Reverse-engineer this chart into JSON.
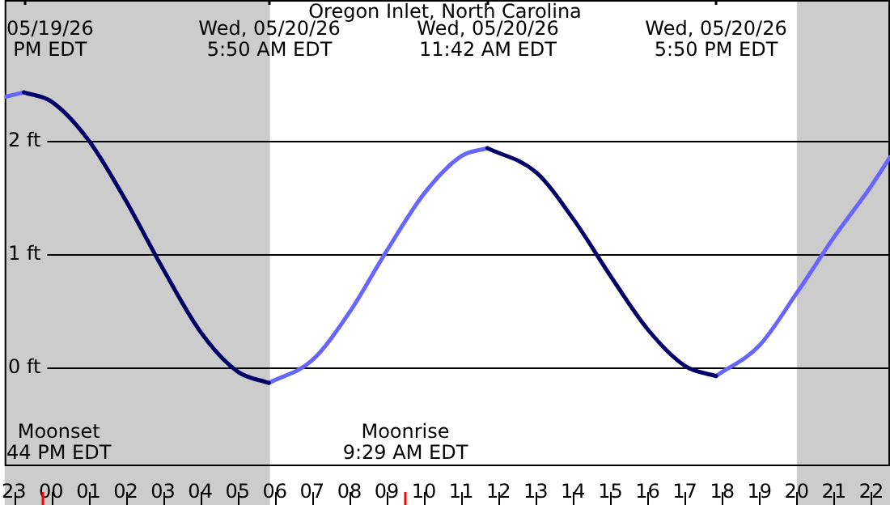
{
  "chart_data": {
    "type": "line",
    "title": "Oregon Inlet, North Carolina",
    "xlim": [
      "--05-19T22:45",
      "--05-20T22:30"
    ],
    "xticks": [
      {
        "value": "--05-19T23:00",
        "label": "23"
      },
      {
        "value": "--05-20T00:00",
        "label": "00"
      },
      {
        "value": "--05-20T01:00",
        "label": "01"
      },
      {
        "value": "--05-20T02:00",
        "label": "02"
      },
      {
        "value": "--05-20T03:00",
        "label": "03"
      },
      {
        "value": "--05-20T04:00",
        "label": "04"
      },
      {
        "value": "--05-20T05:00",
        "label": "05"
      },
      {
        "value": "--05-20T06:00",
        "label": "06"
      },
      {
        "value": "--05-20T07:00",
        "label": "07"
      },
      {
        "value": "--05-20T08:00",
        "label": "08"
      },
      {
        "value": "--05-20T09:00",
        "label": "09"
      },
      {
        "value": "--05-20T10:00",
        "label": "10"
      },
      {
        "value": "--05-20T11:00",
        "label": "11"
      },
      {
        "value": "--05-20T12:00",
        "label": "12"
      },
      {
        "value": "--05-20T13:00",
        "label": "13"
      },
      {
        "value": "--05-20T14:00",
        "label": "14"
      },
      {
        "value": "--05-20T15:00",
        "label": "15"
      },
      {
        "value": "--05-20T16:00",
        "label": "16"
      },
      {
        "value": "--05-20T17:00",
        "label": "17"
      },
      {
        "value": "--05-20T18:00",
        "label": "18"
      },
      {
        "value": "--05-20T19:00",
        "label": "19"
      },
      {
        "value": "--05-20T20:00",
        "label": "20"
      },
      {
        "value": "--05-20T21:00",
        "label": "21"
      },
      {
        "value": "--05-20T22:00",
        "label": "22"
      }
    ],
    "ylim": [
      -0.86,
      3.23
    ],
    "yticks": [
      {
        "value": 0,
        "label": "0 ft"
      },
      {
        "value": 1,
        "label": "1 ft"
      },
      {
        "value": 2,
        "label": "2 ft"
      }
    ],
    "grid": "y",
    "legend": false,
    "marker": "none",
    "line_style": "solid",
    "series": [
      {
        "color": "#000066",
        "x": [
          "--05-19T23:16",
          "--05-20T00:00",
          "--05-20T01:00",
          "--05-20T02:00",
          "--05-20T03:00",
          "--05-20T04:00",
          "--05-20T05:00",
          "--05-20T05:50",
          "--05-20T09:00",
          "--05-20T11:42",
          "--05-20T13:00",
          "--05-20T14:00",
          "--05-20T15:00",
          "--05-20T16:00",
          "--05-20T17:00",
          "--05-20T17:50"
        ],
        "values": [
          2.42,
          2.34,
          2.0,
          1.47,
          0.87,
          0.32,
          -0.03,
          -0.13,
          null,
          1.93,
          1.72,
          1.31,
          0.81,
          0.34,
          0.02,
          -0.07
        ]
      },
      {
        "color": "#6666ff",
        "x": [
          "--05-19T22:45",
          "--05-19T23:16",
          "--05-20T03:00",
          "--05-20T05:50",
          "--05-20T07:00",
          "--05-20T08:00",
          "--05-20T09:00",
          "--05-20T10:00",
          "--05-20T11:00",
          "--05-20T11:42",
          "--05-20T15:00",
          "--05-20T17:50",
          "--05-20T19:00",
          "--05-20T20:00",
          "--05-20T21:00",
          "--05-20T22:00",
          "--05-20T22:30"
        ],
        "values": [
          2.38,
          2.42,
          null,
          -0.13,
          0.07,
          0.49,
          1.03,
          1.53,
          1.86,
          1.93,
          null,
          -0.07,
          0.2,
          0.66,
          1.15,
          1.6,
          1.85
        ]
      }
    ],
    "bands": [
      {
        "axis": "x",
        "from": "--05-19T22:45",
        "to": "--05-20T05:52",
        "color": "#cccccc"
      },
      {
        "axis": "x",
        "from": "--05-20T20:00",
        "to": "--05-20T22:30",
        "color": "#cccccc"
      }
    ],
    "ref_lines": [
      {
        "axis": "x",
        "value": "--05-19T23:44",
        "label": "Moonset\n44 PM EDT",
        "color": "#ff0000"
      },
      {
        "axis": "x",
        "value": "--05-20T09:29",
        "label": "Moonrise\n9:29 AM EDT",
        "color": "#ff0000"
      },
      {
        "axis": "x",
        "value": "--05-19T23:16",
        "label": "05/19/26\nPM EDT"
      },
      {
        "axis": "x",
        "value": "--05-20T05:50",
        "label": "Wed, 05/20/26\n5:50 AM EDT"
      },
      {
        "axis": "x",
        "value": "--05-20T11:42",
        "label": "Wed, 05/20/26\n11:42 AM EDT"
      },
      {
        "axis": "x",
        "value": "--05-20T17:50",
        "label": "Wed, 05/20/26\n5:50 PM EDT"
      }
    ]
  }
}
